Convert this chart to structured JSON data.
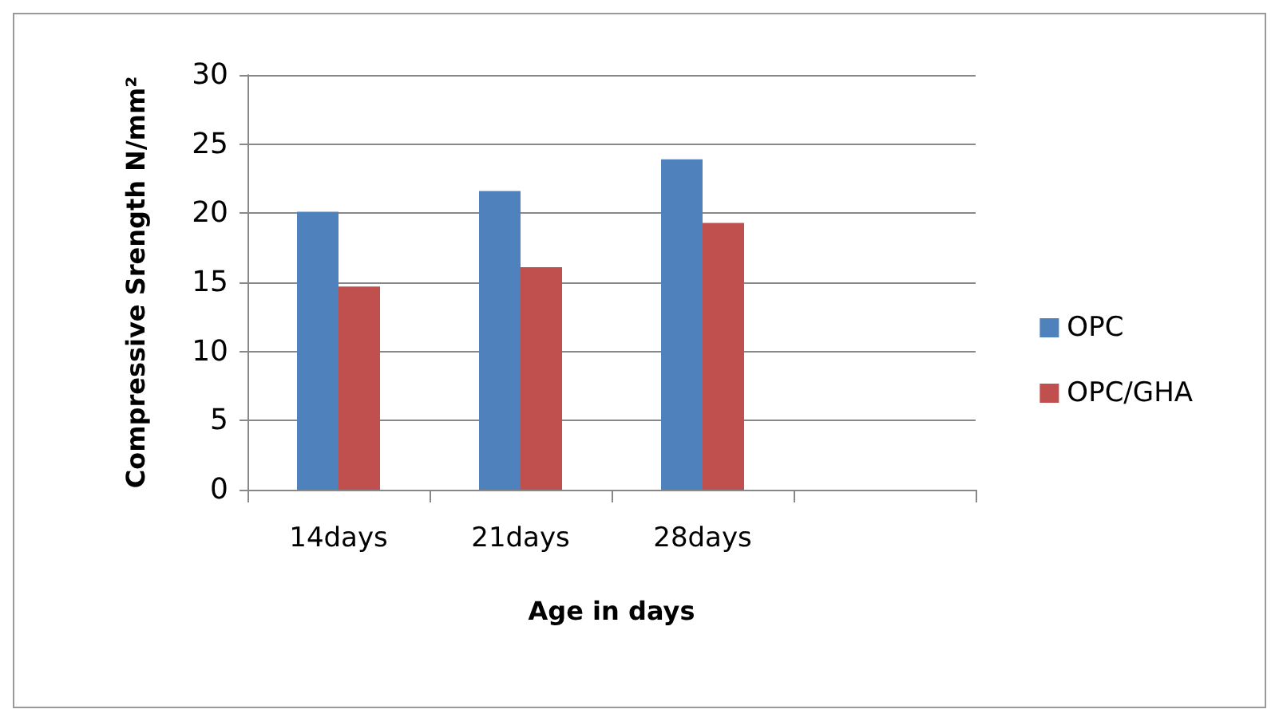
{
  "chart_data": {
    "type": "bar",
    "categories": [
      "14days",
      "21days",
      "28days",
      null
    ],
    "series": [
      {
        "name": "OPC",
        "color": "#4f81bd",
        "values": [
          20.1,
          21.6,
          23.9,
          null
        ]
      },
      {
        "name": "OPC/GHA",
        "color": "#c0504d",
        "values": [
          14.7,
          16.1,
          19.3,
          null
        ]
      }
    ],
    "xlabel": "Age in days",
    "ylabel": "Compressive Srength N/mm²",
    "ylim": [
      0,
      30
    ],
    "yticks": [
      0,
      5,
      10,
      15,
      20,
      25,
      30
    ],
    "grid": "y",
    "legend": "right"
  }
}
